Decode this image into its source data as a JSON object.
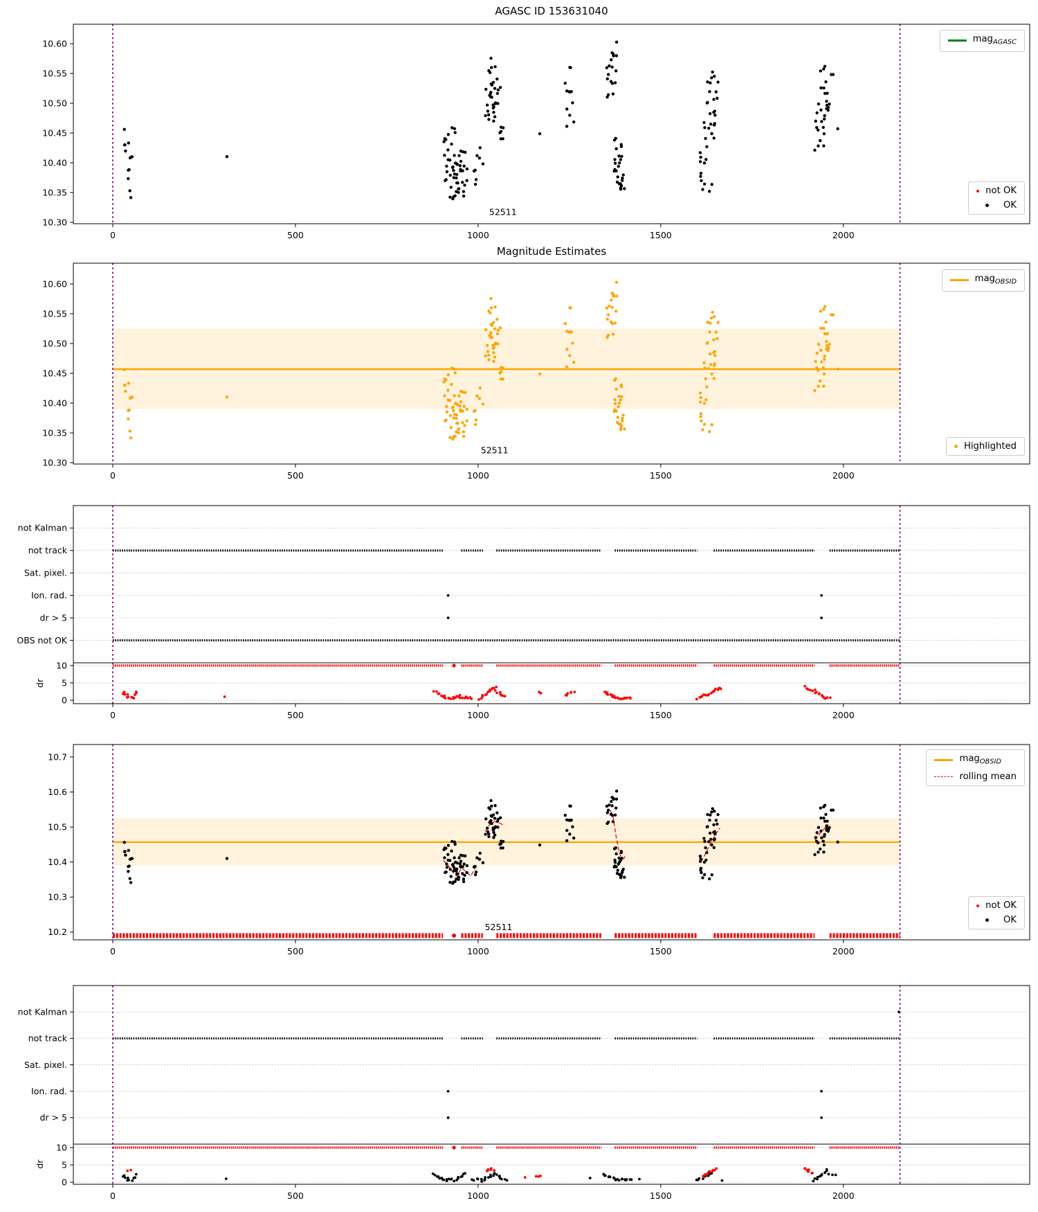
{
  "colors": {
    "black": "#000000",
    "red": "#ff0000",
    "orange": "#ffa500",
    "green": "#008000",
    "purple": "#800080",
    "band": "rgba(255,165,0,0.13)",
    "grid": "#b9b9b9"
  },
  "x_ticks": [
    0,
    500,
    1000,
    1500,
    2000
  ],
  "xlim": [
    -108,
    2510
  ],
  "vlines": [
    0,
    2155
  ],
  "track_segments": [
    [
      0,
      904
    ],
    [
      954,
      1013
    ],
    [
      1050,
      1337
    ],
    [
      1374,
      1600
    ],
    [
      1645,
      1921
    ],
    [
      1962,
      2155
    ]
  ],
  "mag_clusters": [
    {
      "x": [
        30,
        42
      ],
      "y": [
        10.45,
        10.458
      ],
      "n": 1
    },
    {
      "x": [
        18,
        50
      ],
      "y": [
        10.425,
        10.435
      ],
      "n": 3
    },
    {
      "x": [
        28,
        56
      ],
      "y": [
        10.4,
        10.42
      ],
      "n": 4
    },
    {
      "x": [
        40,
        50
      ],
      "y": [
        10.37,
        10.39
      ],
      "n": 3
    },
    {
      "x": [
        46,
        56
      ],
      "y": [
        10.34,
        10.355
      ],
      "n": 2
    },
    {
      "x": [
        308,
        314
      ],
      "y": [
        10.41,
        10.416
      ],
      "n": 1
    },
    {
      "x": [
        905,
        955
      ],
      "y": [
        10.365,
        10.415
      ],
      "n": 24
    },
    {
      "x": [
        906,
        942
      ],
      "y": [
        10.42,
        10.465
      ],
      "n": 9
    },
    {
      "x": [
        912,
        962
      ],
      "y": [
        10.325,
        10.362
      ],
      "n": 10
    },
    {
      "x": [
        950,
        998
      ],
      "y": [
        10.35,
        10.42
      ],
      "n": 16
    },
    {
      "x": [
        996,
        1014
      ],
      "y": [
        10.39,
        10.435
      ],
      "n": 4
    },
    {
      "x": [
        1018,
        1048
      ],
      "y": [
        10.465,
        10.525
      ],
      "n": 14
    },
    {
      "x": [
        1030,
        1062
      ],
      "y": [
        10.495,
        10.545
      ],
      "n": 13
    },
    {
      "x": [
        1040,
        1072
      ],
      "y": [
        10.44,
        10.49
      ],
      "n": 7
    },
    {
      "x": [
        1026,
        1050
      ],
      "y": [
        10.548,
        10.582
      ],
      "n": 5
    },
    {
      "x": [
        1166,
        1172
      ],
      "y": [
        10.444,
        10.45
      ],
      "n": 1
    },
    {
      "x": [
        1238,
        1262
      ],
      "y": [
        10.45,
        10.54
      ],
      "n": 10
    },
    {
      "x": [
        1242,
        1254
      ],
      "y": [
        10.55,
        10.575
      ],
      "n": 2
    },
    {
      "x": [
        1352,
        1378
      ],
      "y": [
        10.5,
        10.565
      ],
      "n": 12
    },
    {
      "x": [
        1364,
        1380
      ],
      "y": [
        10.567,
        10.603
      ],
      "n": 6
    },
    {
      "x": [
        1368,
        1398
      ],
      "y": [
        10.385,
        10.445
      ],
      "n": 15
    },
    {
      "x": [
        1375,
        1402
      ],
      "y": [
        10.345,
        10.385
      ],
      "n": 11
    },
    {
      "x": [
        1608,
        1640
      ],
      "y": [
        10.35,
        10.43
      ],
      "n": 13
    },
    {
      "x": [
        1616,
        1650
      ],
      "y": [
        10.43,
        10.5
      ],
      "n": 13
    },
    {
      "x": [
        1626,
        1662
      ],
      "y": [
        10.5,
        10.556
      ],
      "n": 12
    },
    {
      "x": [
        1918,
        1950
      ],
      "y": [
        10.42,
        10.47
      ],
      "n": 10
    },
    {
      "x": [
        1926,
        1962
      ],
      "y": [
        10.47,
        10.525
      ],
      "n": 13
    },
    {
      "x": [
        1936,
        1972
      ],
      "y": [
        10.525,
        10.565
      ],
      "n": 8
    },
    {
      "x": [
        1984,
        1992
      ],
      "y": [
        10.455,
        10.462
      ],
      "n": 1
    }
  ],
  "dr_upper_clusters": [
    {
      "p": [
        [
          25,
          2.2
        ],
        [
          40,
          1.2
        ],
        [
          52,
          0.5
        ],
        [
          66,
          2.6
        ]
      ],
      "n": 12,
      "j": 0.5
    },
    {
      "p": [
        [
          310,
          1.0
        ]
      ],
      "n": 1,
      "j": 0
    },
    {
      "p": [
        [
          878,
          2.4
        ],
        [
          898,
          1.4
        ],
        [
          915,
          0.6
        ],
        [
          932,
          0.5
        ],
        [
          948,
          1.3
        ]
      ],
      "n": 18,
      "j": 0.35
    },
    {
      "p": [
        [
          952,
          0.5
        ],
        [
          968,
          1.0
        ],
        [
          984,
          0.6
        ]
      ],
      "n": 7,
      "j": 0.3
    },
    {
      "p": [
        [
          1002,
          0.4
        ],
        [
          1014,
          1.3
        ],
        [
          1026,
          2.3
        ],
        [
          1038,
          3.3
        ],
        [
          1046,
          3.7
        ]
      ],
      "n": 13,
      "j": 0.35
    },
    {
      "p": [
        [
          1050,
          2.6
        ],
        [
          1062,
          1.7
        ],
        [
          1074,
          1.1
        ]
      ],
      "n": 7,
      "j": 0.3
    },
    {
      "p": [
        [
          1168,
          2.1
        ]
      ],
      "n": 2,
      "j": 0.25
    },
    {
      "p": [
        [
          1238,
          1.2
        ],
        [
          1250,
          1.9
        ],
        [
          1262,
          2.5
        ]
      ],
      "n": 6,
      "j": 0.35
    },
    {
      "p": [
        [
          1348,
          2.4
        ],
        [
          1362,
          1.5
        ],
        [
          1378,
          0.8
        ],
        [
          1398,
          0.4
        ],
        [
          1418,
          0.6
        ]
      ],
      "n": 22,
      "j": 0.3
    },
    {
      "p": [
        [
          1600,
          0.5
        ],
        [
          1618,
          1.3
        ],
        [
          1636,
          2.1
        ],
        [
          1652,
          3.0
        ],
        [
          1664,
          3.6
        ]
      ],
      "n": 17,
      "j": 0.35
    },
    {
      "p": [
        [
          1898,
          3.9
        ],
        [
          1914,
          3.0
        ],
        [
          1930,
          2.0
        ],
        [
          1946,
          1.0
        ],
        [
          1962,
          0.5
        ]
      ],
      "n": 16,
      "j": 0.35
    }
  ],
  "dr_lower_clusters": [
    {
      "p": [
        [
          25,
          1.9
        ],
        [
          38,
          1.0
        ],
        [
          50,
          0.4
        ],
        [
          62,
          2.2
        ]
      ],
      "n": 10,
      "j": 0.4,
      "c": "k"
    },
    {
      "p": [
        [
          44,
          3.3
        ],
        [
          52,
          3.6
        ]
      ],
      "n": 2,
      "j": 0.15,
      "c": "r"
    },
    {
      "p": [
        [
          310,
          1.0
        ]
      ],
      "n": 1,
      "j": 0,
      "c": "k"
    },
    {
      "p": [
        [
          878,
          2.3
        ],
        [
          896,
          1.4
        ],
        [
          914,
          0.6
        ],
        [
          928,
          1.0
        ]
      ],
      "n": 13,
      "j": 0.3,
      "c": "k"
    },
    {
      "p": [
        [
          934,
          0.5
        ],
        [
          950,
          1.5
        ],
        [
          962,
          2.6
        ]
      ],
      "n": 8,
      "j": 0.3,
      "c": "k"
    },
    {
      "p": [
        [
          986,
          0.6
        ],
        [
          1000,
          0.9
        ]
      ],
      "n": 4,
      "j": 0.25,
      "c": "k"
    },
    {
      "p": [
        [
          1006,
          0.3
        ],
        [
          1020,
          1.1
        ],
        [
          1034,
          1.9
        ],
        [
          1046,
          2.5
        ]
      ],
      "n": 11,
      "j": 0.35,
      "c": "k"
    },
    {
      "p": [
        [
          1022,
          3.1
        ],
        [
          1034,
          3.8
        ],
        [
          1046,
          3.3
        ]
      ],
      "n": 7,
      "j": 0.2,
      "c": "r"
    },
    {
      "p": [
        [
          1052,
          2.2
        ],
        [
          1064,
          1.2
        ],
        [
          1076,
          0.5
        ]
      ],
      "n": 7,
      "j": 0.3,
      "c": "k"
    },
    {
      "p": [
        [
          1130,
          1.4
        ]
      ],
      "n": 1,
      "j": 0,
      "c": "r"
    },
    {
      "p": [
        [
          1162,
          1.6
        ],
        [
          1174,
          2.0
        ]
      ],
      "n": 3,
      "j": 0.2,
      "c": "r"
    },
    {
      "p": [
        [
          1310,
          1.2
        ]
      ],
      "n": 1,
      "j": 0,
      "c": "k"
    },
    {
      "p": [
        [
          1345,
          2.2
        ],
        [
          1360,
          1.4
        ],
        [
          1380,
          0.8
        ],
        [
          1400,
          0.7
        ],
        [
          1418,
          0.5
        ]
      ],
      "n": 18,
      "j": 0.25,
      "c": "k"
    },
    {
      "p": [
        [
          1440,
          0.9
        ]
      ],
      "n": 1,
      "j": 0,
      "c": "k"
    },
    {
      "p": [
        [
          1598,
          0.4
        ],
        [
          1614,
          1.1
        ],
        [
          1630,
          2.0
        ],
        [
          1642,
          2.8
        ]
      ],
      "n": 10,
      "j": 0.3,
      "c": "k"
    },
    {
      "p": [
        [
          1614,
          1.7
        ],
        [
          1628,
          2.5
        ],
        [
          1640,
          3.3
        ],
        [
          1650,
          3.7
        ]
      ],
      "n": 9,
      "j": 0.25,
      "c": "r"
    },
    {
      "p": [
        [
          1666,
          0.5
        ]
      ],
      "n": 1,
      "j": 0,
      "c": "k"
    },
    {
      "p": [
        [
          1896,
          3.9
        ],
        [
          1906,
          3.2
        ],
        [
          1914,
          2.4
        ]
      ],
      "n": 6,
      "j": 0.3,
      "c": "r"
    },
    {
      "p": [
        [
          1920,
          0.6
        ],
        [
          1932,
          1.5
        ],
        [
          1944,
          2.5
        ],
        [
          1954,
          3.4
        ]
      ],
      "n": 12,
      "j": 0.3,
      "c": "k"
    },
    {
      "p": [
        [
          1962,
          2.3
        ],
        [
          1976,
          2.2
        ]
      ],
      "n": 3,
      "j": 0.15,
      "c": "k"
    }
  ],
  "chart_data": [
    {
      "id": "plot1",
      "type": "scatter",
      "title": "AGASC ID 153631040",
      "ylim": [
        10.2977,
        10.6326
      ],
      "yticks": [
        10.3,
        10.35,
        10.4,
        10.45,
        10.5,
        10.55,
        10.6
      ],
      "ydecimals": 2,
      "point_color": "#000000",
      "annotation": {
        "text": "52511",
        "x": 1068,
        "y": 10.312
      },
      "legend_top": [
        {
          "type": "line",
          "color": "#008000",
          "main": "mag",
          "sub": "AGASC"
        }
      ],
      "legend_bottom": [
        {
          "type": "dot",
          "color": "#ff0000",
          "size": 4,
          "label": "not OK"
        },
        {
          "type": "dot",
          "color": "#000000",
          "size": 5,
          "label": "OK"
        }
      ]
    },
    {
      "id": "plot2",
      "type": "scatter",
      "title": "Magnitude Estimates",
      "ylim": [
        10.2977,
        10.6349
      ],
      "yticks": [
        10.3,
        10.35,
        10.4,
        10.45,
        10.5,
        10.55,
        10.6
      ],
      "ydecimals": 2,
      "point_color": "#ffa500",
      "hline": {
        "value": 10.457,
        "color": "#ffa500"
      },
      "band": {
        "from": 10.39,
        "to": 10.525
      },
      "annotation": {
        "text": "52511",
        "x": 1045,
        "y": 10.316
      },
      "legend_top": [
        {
          "type": "line",
          "color": "#ffa500",
          "main": "mag",
          "sub": "OBSID"
        }
      ],
      "legend_bottom": [
        {
          "type": "dot",
          "color": "#ffa500",
          "size": 5,
          "label": "Highlighted"
        }
      ]
    },
    {
      "id": "flags-upper",
      "type": "flags",
      "categories": [
        "not Kalman",
        "not track",
        "Sat. pixel.",
        "Ion. rad.",
        "dr > 5",
        "OBS not OK"
      ],
      "row_series": [
        {
          "category": "not track",
          "segments": "@track_segments"
        },
        {
          "category": "OBS not OK",
          "segments": [
            [
              0,
              2155
            ]
          ]
        }
      ],
      "row_points": [
        {
          "category": "Ion. rad.",
          "x": [
            918,
            1940
          ]
        },
        {
          "category": "dr > 5",
          "x": [
            918,
            1940
          ]
        }
      ],
      "dr": {
        "ylabel": "dr",
        "ticks": [
          0,
          5,
          10
        ],
        "ylim": [
          -1,
          10.8
        ],
        "ten_segments": "@track_segments",
        "ten_loners": [
          934
        ],
        "clusters": "@dr_upper_clusters"
      }
    },
    {
      "id": "plot4",
      "type": "scatter",
      "title": "",
      "ylim": [
        10.178,
        10.7356
      ],
      "yticks": [
        10.2,
        10.3,
        10.4,
        10.5,
        10.6,
        10.7
      ],
      "ydecimals": 1,
      "point_color": "#000000",
      "hline": {
        "value": 10.457,
        "color": "#ffa500"
      },
      "band": {
        "from": 10.39,
        "to": 10.525
      },
      "rolling_mean": [
        [
          [
            905,
            10.405
          ],
          [
            918,
            10.39
          ],
          [
            930,
            10.372
          ],
          [
            942,
            10.36
          ],
          [
            955,
            10.383
          ],
          [
            968,
            10.372
          ],
          [
            980,
            10.36
          ],
          [
            992,
            10.382
          ]
        ],
        [
          [
            1020,
            10.487
          ],
          [
            1032,
            10.508
          ],
          [
            1046,
            10.516
          ],
          [
            1058,
            10.512
          ],
          [
            1070,
            10.505
          ]
        ],
        [
          [
            1362,
            10.548
          ],
          [
            1370,
            10.528
          ],
          [
            1377,
            10.478
          ],
          [
            1384,
            10.437
          ],
          [
            1391,
            10.415
          ],
          [
            1399,
            10.41
          ],
          [
            1405,
            10.422
          ]
        ],
        [
          [
            1610,
            10.4
          ],
          [
            1624,
            10.427
          ],
          [
            1638,
            10.457
          ],
          [
            1652,
            10.482
          ],
          [
            1662,
            10.497
          ]
        ],
        [
          [
            1922,
            10.462
          ],
          [
            1936,
            10.482
          ],
          [
            1949,
            10.497
          ],
          [
            1959,
            10.507
          ]
        ]
      ],
      "red_row": {
        "value": 10.19,
        "segments": "@track_segments",
        "loners": [
          934
        ]
      },
      "annotation": {
        "text": "52511",
        "x": 1056,
        "y": 10.206
      },
      "legend_top": [
        {
          "type": "line",
          "color": "#ffa500",
          "main": "mag",
          "sub": "OBSID"
        },
        {
          "type": "dashed",
          "color": "#ff0000",
          "label": "rolling mean"
        }
      ],
      "legend_bottom": [
        {
          "type": "dot",
          "color": "#ff0000",
          "size": 4,
          "label": "not OK"
        },
        {
          "type": "dot",
          "color": "#000000",
          "size": 5,
          "label": "OK"
        }
      ]
    },
    {
      "id": "flags-lower",
      "type": "flags",
      "categories": [
        "not Kalman",
        "not track",
        "Sat. pixel.",
        "Ion. rad.",
        "dr > 5"
      ],
      "row_series": [
        {
          "category": "not track",
          "segments": "@track_segments"
        }
      ],
      "row_points": [
        {
          "category": "not Kalman",
          "x": [
            2152
          ]
        },
        {
          "category": "Ion. rad.",
          "x": [
            918,
            1940
          ]
        },
        {
          "category": "dr > 5",
          "x": [
            918,
            1940
          ]
        }
      ],
      "dr": {
        "ylabel": "dr",
        "ticks": [
          0,
          5,
          10
        ],
        "ylim": [
          -0.6,
          11
        ],
        "ten_segments": "@track_segments",
        "ten_loners": [
          934
        ],
        "clusters": "@dr_lower_clusters"
      }
    }
  ]
}
